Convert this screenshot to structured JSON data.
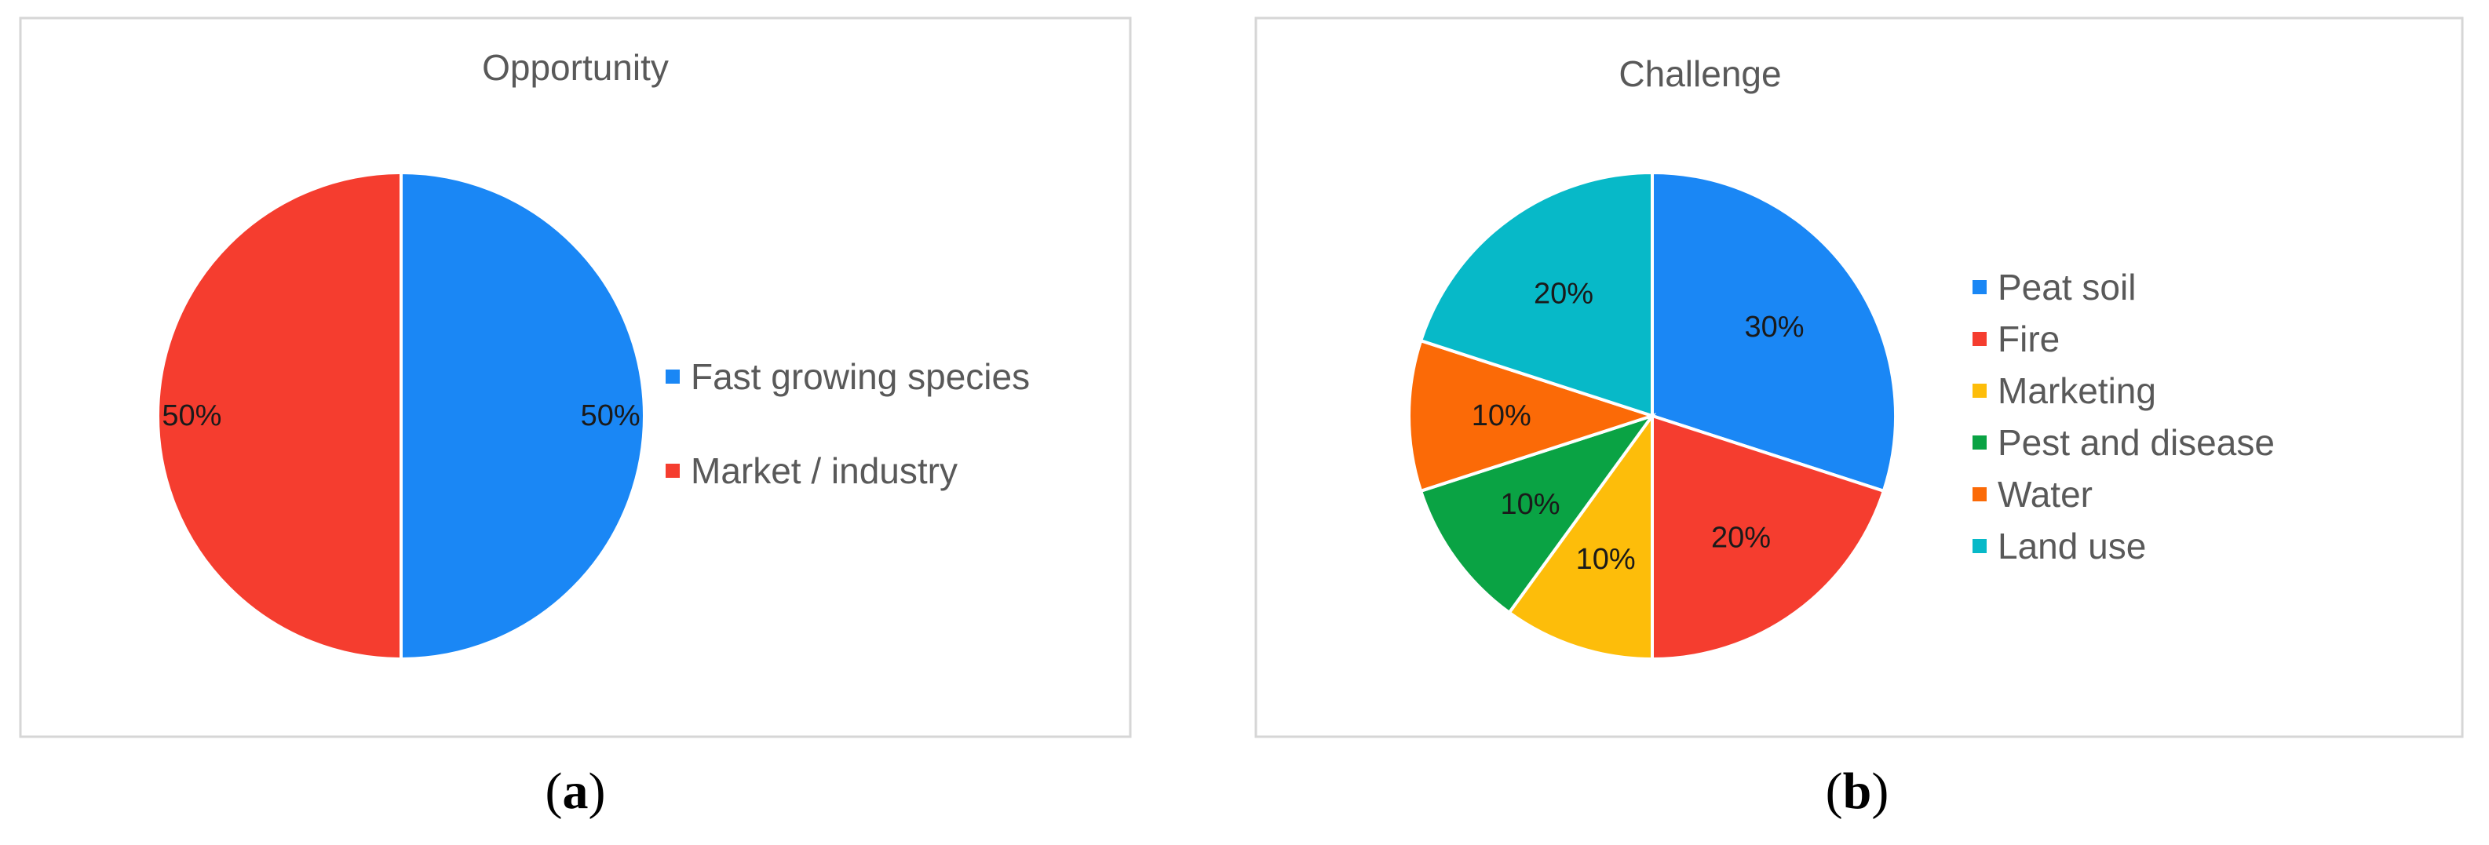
{
  "chart_data": [
    {
      "type": "pie",
      "panel": "a",
      "title": "Opportunity",
      "categories": [
        "Fast growing species",
        "Market / industry"
      ],
      "values": [
        50,
        50
      ],
      "data_labels": [
        "50%",
        "50%"
      ],
      "colors": [
        "#1a87f5",
        "#f53d2f"
      ],
      "legend_position": "right"
    },
    {
      "type": "pie",
      "panel": "b",
      "title": "Challenge",
      "categories": [
        "Peat soil",
        "Fire",
        "Marketing",
        "Pest and disease",
        "Water",
        "Land use"
      ],
      "values": [
        30,
        20,
        10,
        10,
        10,
        20
      ],
      "data_labels": [
        "30%",
        "20%",
        "10%",
        "10%",
        "10%",
        "20%"
      ],
      "colors": [
        "#1a87f5",
        "#f53d2f",
        "#fdbd0a",
        "#0aa344",
        "#fb6a07",
        "#07b9c8"
      ],
      "legend_position": "right"
    }
  ],
  "captions": [
    {
      "open": "(",
      "letter": "a",
      "close": ")"
    },
    {
      "open": "(",
      "letter": "b",
      "close": ")"
    }
  ]
}
